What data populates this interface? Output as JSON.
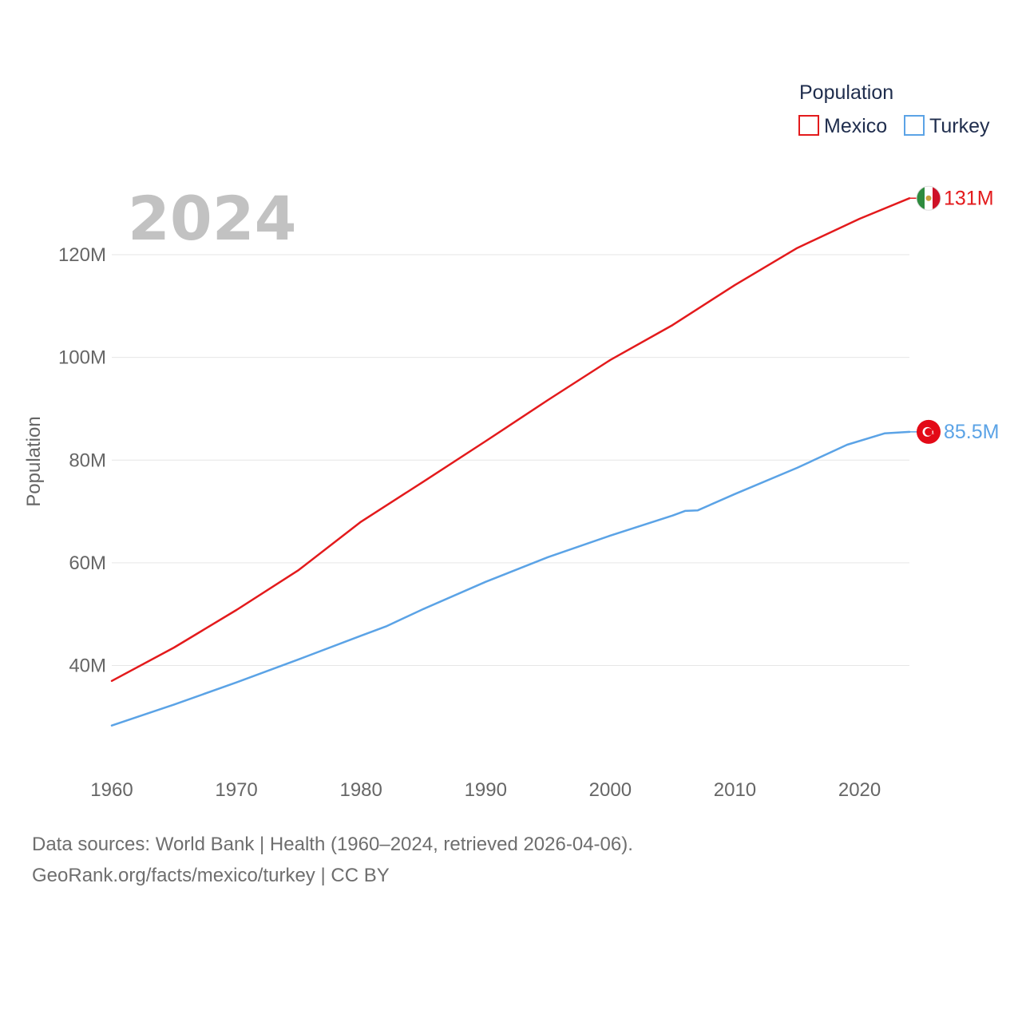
{
  "chart_data": {
    "type": "line",
    "current_year": "2024",
    "ylabel": "Population",
    "xlabel": "",
    "xlim": [
      1960,
      2024
    ],
    "ylim": [
      20000000,
      135000000
    ],
    "x_ticks": [
      1960,
      1970,
      1980,
      1990,
      2000,
      2010,
      2020
    ],
    "x_tick_labels": [
      "1960",
      "1970",
      "1980",
      "1990",
      "2000",
      "2010",
      "2020"
    ],
    "y_ticks": [
      40000000,
      60000000,
      80000000,
      100000000,
      120000000
    ],
    "y_tick_labels": [
      "40M",
      "60M",
      "80M",
      "100M",
      "120M"
    ],
    "legend": {
      "title": "Population",
      "position": "top-right"
    },
    "series": [
      {
        "name": "Mexico",
        "color": "#e31a1c",
        "end_label": "131M",
        "flag_icon": "mexico-flag-icon",
        "points": [
          [
            1960,
            37000000
          ],
          [
            1965,
            43500000
          ],
          [
            1970,
            50800000
          ],
          [
            1975,
            58600000
          ],
          [
            1980,
            68000000
          ],
          [
            1985,
            75800000
          ],
          [
            1990,
            83700000
          ],
          [
            1995,
            91700000
          ],
          [
            2000,
            99500000
          ],
          [
            2005,
            106300000
          ],
          [
            2010,
            114100000
          ],
          [
            2015,
            121300000
          ],
          [
            2020,
            127000000
          ],
          [
            2024,
            131000000
          ]
        ]
      },
      {
        "name": "Turkey",
        "color": "#5ba3e6",
        "end_label": "85.5M",
        "flag_icon": "turkey-flag-icon",
        "points": [
          [
            1960,
            28300000
          ],
          [
            1965,
            32400000
          ],
          [
            1970,
            36700000
          ],
          [
            1975,
            41200000
          ],
          [
            1980,
            45800000
          ],
          [
            1982,
            47600000
          ],
          [
            1985,
            51000000
          ],
          [
            1990,
            56300000
          ],
          [
            1995,
            61100000
          ],
          [
            2000,
            65300000
          ],
          [
            2005,
            69200000
          ],
          [
            2006,
            70100000
          ],
          [
            2007,
            70200000
          ],
          [
            2010,
            73400000
          ],
          [
            2015,
            78500000
          ],
          [
            2019,
            83000000
          ],
          [
            2022,
            85200000
          ],
          [
            2024,
            85500000
          ]
        ]
      }
    ]
  },
  "footer": {
    "line1": "Data sources: World Bank | Health (1960–2024, retrieved 2026-04-06).",
    "line2": "GeoRank.org/facts/mexico/turkey | CC BY"
  }
}
